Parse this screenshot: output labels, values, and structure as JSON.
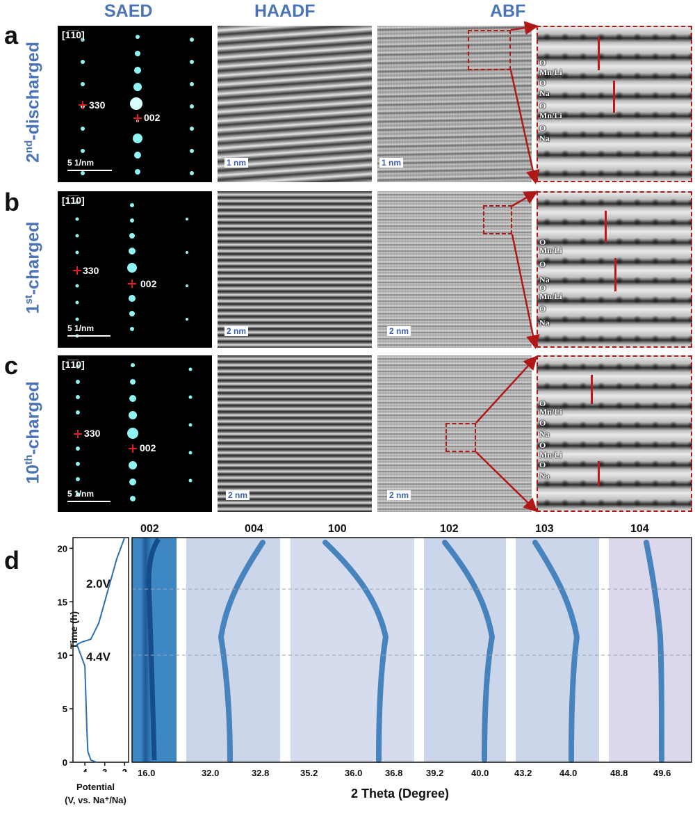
{
  "columns": {
    "saed": "SAED",
    "haadf": "HAADF",
    "abf": "ABF"
  },
  "rows": [
    {
      "letter": "a",
      "state_base": "2",
      "state_sup": "nd",
      "state_rest": "-discharged",
      "zone_axis": "[1̅1̅0]",
      "spot1": "330",
      "spot2": "002",
      "saed_scale": "5 1/nm",
      "haadf_scale": "1 nm",
      "abf_scale": "1 nm"
    },
    {
      "letter": "b",
      "state_base": "1",
      "state_sup": "st",
      "state_rest": "-charged",
      "zone_axis": "[1̅1̅0]",
      "spot1": "330",
      "spot2": "002",
      "saed_scale": "5 1/nm",
      "haadf_scale": "2 nm",
      "abf_scale": "2 nm"
    },
    {
      "letter": "c",
      "state_base": "10",
      "state_sup": "th",
      "state_rest": "-charged",
      "zone_axis": "[1̅1̅0]",
      "spot1": "330",
      "spot2": "002",
      "saed_scale": "5 1/nm",
      "haadf_scale": "2 nm",
      "abf_scale": "2 nm"
    }
  ],
  "layers": {
    "a": [
      "O",
      "Mn/Li",
      "O",
      "Na",
      "O",
      "Mn/Li",
      "O",
      "Na"
    ],
    "b": [
      "O",
      "Mn/Li",
      "O",
      "Na",
      "O",
      "Mn/Li",
      "O",
      "Na"
    ],
    "c": [
      "O",
      "Mn/Li",
      "O",
      "Na",
      "O",
      "Mn/Li",
      "O",
      "Na"
    ]
  },
  "panel_d": {
    "letter": "d",
    "time_axis_label": "Time (h)",
    "potential_label_1": "Potential",
    "potential_label_2": "(V, vs. Na⁺/Na)",
    "x_axis_label": "2 Theta (Degree)",
    "annotations": [
      "2.0V",
      "4.4V"
    ],
    "reflections": [
      "002",
      "004",
      "100",
      "102",
      "103",
      "104"
    ]
  },
  "chart_data": {
    "type": "heatmap",
    "time_axis": {
      "label": "Time (h)",
      "ticks": [
        0,
        5,
        10,
        15,
        20
      ],
      "range": [
        0,
        21
      ]
    },
    "potential_axis": {
      "label": "Potential (V, vs. Na⁺/Na)",
      "ticks": [
        "4",
        "3",
        "2"
      ]
    },
    "two_theta_ticks": {
      "002": [
        "16.0"
      ],
      "004": [
        "32.0",
        "32.8"
      ],
      "100": [
        "35.2",
        "36.0",
        "36.8"
      ],
      "102": [
        "39.2",
        "40.0"
      ],
      "103": [
        "43.2",
        "44.0"
      ],
      "104": [
        "48.8",
        "49.6"
      ]
    },
    "voltage_profile": {
      "time_h": [
        0,
        0.2,
        1,
        3,
        6,
        9,
        11,
        11.2,
        11.5,
        13,
        15,
        17,
        19,
        21
      ],
      "potential_v": [
        3.4,
        3.7,
        3.85,
        3.9,
        3.95,
        4.0,
        4.4,
        4.2,
        3.7,
        3.3,
        3.0,
        2.7,
        2.4,
        2.0
      ]
    },
    "annotations": [
      {
        "text": "2.0V",
        "time_h": 18.7
      },
      {
        "text": "4.4V",
        "time_h": 11
      }
    ]
  }
}
